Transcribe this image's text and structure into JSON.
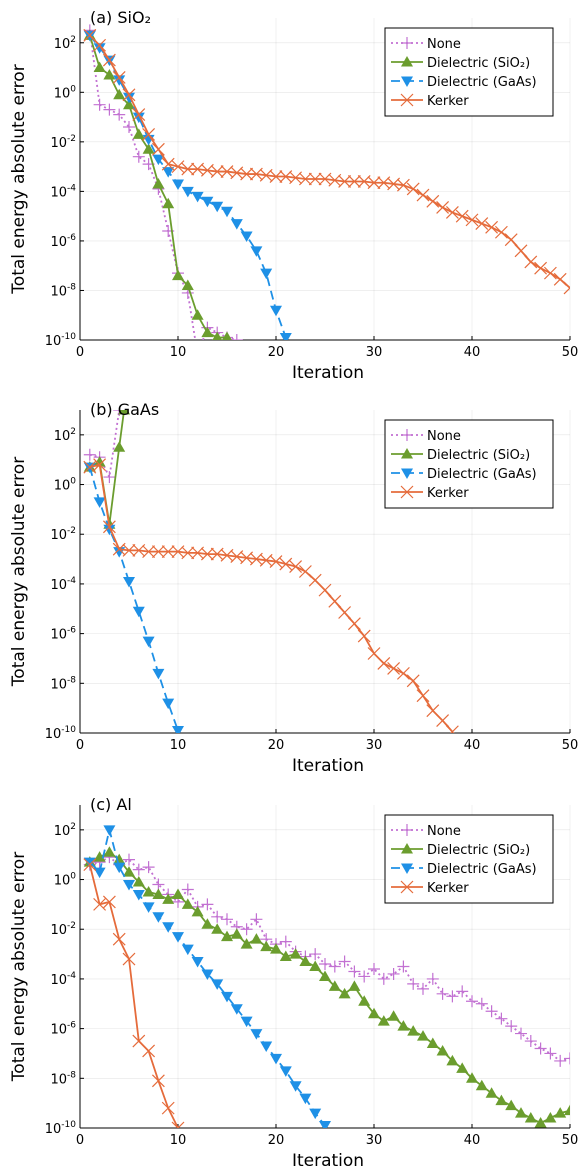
{
  "colors": {
    "None": "#c271d2",
    "Dielectric (SiO₂)": "#6b9d2e",
    "Dielectric (GaAs)": "#1e90e6",
    "Kerker": "#e56b3b"
  },
  "chart_data": [
    {
      "type": "line",
      "title": "(a) SiO₂",
      "xlabel": "Iteration",
      "ylabel": "Total energy absolute error",
      "xlim": [
        0,
        50
      ],
      "ylim_exp": [
        -10,
        3
      ],
      "yscale": "log",
      "xticks": [
        0,
        10,
        20,
        30,
        40,
        50
      ],
      "yticks_exp": [
        -10,
        -8,
        -6,
        -4,
        -2,
        0,
        2
      ],
      "grid": true,
      "legend": "top-right",
      "series": [
        {
          "name": "None",
          "marker": "plus",
          "dash": "dotted",
          "x": [
            1,
            2,
            3,
            4,
            5,
            6,
            7,
            8,
            9,
            10,
            11,
            12,
            13,
            14,
            15,
            16
          ],
          "y": [
            2.5,
            -0.5,
            -0.7,
            -0.9,
            -1.4,
            -2.6,
            -2.9,
            -3.9,
            -5.6,
            -7.3,
            -8.1,
            -10.6,
            -9.5,
            -9.7,
            -9.9,
            -10.0
          ]
        },
        {
          "name": "Dielectric (SiO₂)",
          "marker": "triangle-up",
          "dash": "solid",
          "x": [
            1,
            2,
            3,
            4,
            5,
            6,
            7,
            8,
            9,
            10,
            11,
            12,
            13,
            14,
            15
          ],
          "y": [
            2.3,
            1.0,
            0.7,
            -0.1,
            -0.5,
            -1.7,
            -2.3,
            -3.7,
            -4.5,
            -7.4,
            -7.8,
            -9.0,
            -9.7,
            -9.9,
            -9.9
          ]
        },
        {
          "name": "Dielectric (GaAs)",
          "marker": "triangle-down",
          "dash": "dashed",
          "x": [
            1,
            2,
            3,
            4,
            5,
            6,
            7,
            8,
            9,
            10,
            11,
            12,
            13,
            14,
            15,
            16,
            17,
            18,
            19,
            20,
            21
          ],
          "y": [
            2.3,
            1.8,
            1.3,
            0.5,
            -0.2,
            -1.0,
            -1.9,
            -2.7,
            -3.2,
            -3.7,
            -4.0,
            -4.2,
            -4.4,
            -4.6,
            -4.8,
            -5.3,
            -5.8,
            -6.4,
            -7.3,
            -8.8,
            -9.9
          ]
        },
        {
          "name": "Kerker",
          "marker": "x",
          "dash": "solid",
          "x": [
            1,
            2,
            3,
            4,
            5,
            6,
            7,
            8,
            9,
            10,
            11,
            12,
            13,
            14,
            15,
            16,
            17,
            18,
            19,
            20,
            21,
            22,
            23,
            24,
            25,
            26,
            27,
            28,
            29,
            30,
            31,
            32,
            33,
            34,
            35,
            36,
            37,
            38,
            39,
            40,
            41,
            42,
            43,
            44,
            45,
            46,
            47,
            48,
            49,
            50
          ],
          "y": [
            2.3,
            1.9,
            1.3,
            0.6,
            -0.1,
            -0.9,
            -1.7,
            -2.3,
            -2.9,
            -3.0,
            -3.1,
            -3.1,
            -3.15,
            -3.2,
            -3.2,
            -3.25,
            -3.3,
            -3.3,
            -3.35,
            -3.4,
            -3.4,
            -3.45,
            -3.5,
            -3.5,
            -3.5,
            -3.55,
            -3.6,
            -3.6,
            -3.6,
            -3.65,
            -3.65,
            -3.7,
            -3.75,
            -3.9,
            -4.15,
            -4.4,
            -4.65,
            -4.85,
            -5.0,
            -5.15,
            -5.3,
            -5.45,
            -5.65,
            -5.95,
            -6.4,
            -6.85,
            -7.1,
            -7.3,
            -7.55,
            -7.9
          ]
        }
      ]
    },
    {
      "type": "line",
      "title": "(b) GaAs",
      "xlabel": "Iteration",
      "ylabel": "Total energy absolute error",
      "xlim": [
        0,
        50
      ],
      "ylim_exp": [
        -10,
        3
      ],
      "yscale": "log",
      "xticks": [
        0,
        10,
        20,
        30,
        40,
        50
      ],
      "yticks_exp": [
        -10,
        -8,
        -6,
        -4,
        -2,
        0,
        2
      ],
      "grid": true,
      "legend": "top-right",
      "series": [
        {
          "name": "None",
          "marker": "plus",
          "dash": "dotted",
          "x": [
            1,
            2,
            3,
            4
          ],
          "y": [
            1.2,
            1.1,
            0.3,
            3.0
          ]
        },
        {
          "name": "Dielectric (SiO₂)",
          "marker": "triangle-up",
          "dash": "solid",
          "x": [
            1,
            2,
            3,
            4,
            4.5
          ],
          "y": [
            0.7,
            0.9,
            -1.6,
            1.5,
            3.0
          ]
        },
        {
          "name": "Dielectric (GaAs)",
          "marker": "triangle-down",
          "dash": "dashed",
          "x": [
            1,
            2,
            3,
            4,
            5,
            6,
            7,
            8,
            9,
            10
          ],
          "y": [
            0.7,
            -0.7,
            -1.8,
            -2.7,
            -3.9,
            -5.1,
            -6.3,
            -7.6,
            -8.8,
            -9.9
          ]
        },
        {
          "name": "Kerker",
          "marker": "x",
          "dash": "solid",
          "x": [
            1,
            2,
            3,
            4,
            5,
            6,
            7,
            8,
            9,
            10,
            11,
            12,
            13,
            14,
            15,
            16,
            17,
            18,
            19,
            20,
            21,
            22,
            23,
            24,
            25,
            26,
            27,
            28,
            29,
            30,
            31,
            32,
            33,
            34,
            35,
            36,
            37,
            38
          ],
          "y": [
            0.7,
            0.8,
            -1.7,
            -2.6,
            -2.65,
            -2.65,
            -2.7,
            -2.7,
            -2.7,
            -2.7,
            -2.75,
            -2.75,
            -2.8,
            -2.8,
            -2.85,
            -2.9,
            -2.95,
            -3.0,
            -3.05,
            -3.1,
            -3.2,
            -3.3,
            -3.5,
            -3.85,
            -4.25,
            -4.7,
            -5.15,
            -5.6,
            -6.1,
            -6.8,
            -7.2,
            -7.4,
            -7.6,
            -7.9,
            -8.5,
            -9.1,
            -9.5,
            -9.95
          ]
        }
      ]
    },
    {
      "type": "line",
      "title": "(c) Al",
      "xlabel": "Iteration",
      "ylabel": "Total energy absolute error",
      "xlim": [
        0,
        50
      ],
      "ylim_exp": [
        -10,
        3
      ],
      "yscale": "log",
      "xticks": [
        0,
        10,
        20,
        30,
        40,
        50
      ],
      "yticks_exp": [
        -10,
        -8,
        -6,
        -4,
        -2,
        0,
        2
      ],
      "grid": true,
      "legend": "top-right",
      "series": [
        {
          "name": "None",
          "marker": "plus",
          "dash": "dotted",
          "x": [
            1,
            2,
            3,
            4,
            5,
            6,
            7,
            8,
            9,
            10,
            11,
            12,
            13,
            14,
            15,
            16,
            17,
            18,
            19,
            20,
            21,
            22,
            23,
            24,
            25,
            26,
            27,
            28,
            29,
            30,
            31,
            32,
            33,
            34,
            35,
            36,
            37,
            38,
            39,
            40,
            41,
            42,
            43,
            44,
            45,
            46,
            47,
            48,
            49,
            50
          ],
          "y": [
            0.6,
            0.7,
            0.9,
            0.6,
            0.8,
            0.4,
            0.5,
            -0.2,
            -0.6,
            -0.9,
            -0.4,
            -1.1,
            -1.0,
            -1.5,
            -1.6,
            -1.9,
            -2.0,
            -1.6,
            -2.4,
            -2.6,
            -2.5,
            -2.9,
            -3.1,
            -3.0,
            -3.4,
            -3.5,
            -3.3,
            -3.7,
            -3.9,
            -3.6,
            -4.0,
            -3.8,
            -3.5,
            -4.2,
            -4.4,
            -4.0,
            -4.6,
            -4.7,
            -4.5,
            -4.9,
            -5.0,
            -5.3,
            -5.6,
            -5.9,
            -6.2,
            -6.5,
            -6.8,
            -7.0,
            -7.3,
            -7.2
          ]
        },
        {
          "name": "Dielectric (SiO₂)",
          "marker": "triangle-up",
          "dash": "solid",
          "x": [
            1,
            2,
            3,
            4,
            5,
            6,
            7,
            8,
            9,
            10,
            11,
            12,
            13,
            14,
            15,
            16,
            17,
            18,
            19,
            20,
            21,
            22,
            23,
            24,
            25,
            26,
            27,
            28,
            29,
            30,
            31,
            32,
            33,
            34,
            35,
            36,
            37,
            38,
            39,
            40,
            41,
            42,
            43,
            44,
            45,
            46,
            47,
            48,
            49,
            50
          ],
          "y": [
            0.7,
            0.9,
            1.1,
            0.8,
            0.3,
            -0.1,
            -0.5,
            -0.6,
            -0.8,
            -0.6,
            -1.0,
            -1.3,
            -1.8,
            -2.0,
            -2.3,
            -2.2,
            -2.6,
            -2.4,
            -2.7,
            -2.8,
            -3.1,
            -3.0,
            -3.3,
            -3.5,
            -3.9,
            -4.3,
            -4.6,
            -4.3,
            -4.9,
            -5.4,
            -5.7,
            -5.5,
            -5.9,
            -6.1,
            -6.3,
            -6.6,
            -6.9,
            -7.3,
            -7.6,
            -8.0,
            -8.3,
            -8.6,
            -8.9,
            -9.1,
            -9.4,
            -9.6,
            -9.8,
            -9.6,
            -9.4,
            -9.3
          ]
        },
        {
          "name": "Dielectric (GaAs)",
          "marker": "triangle-down",
          "dash": "dashed",
          "x": [
            1,
            2,
            3,
            4,
            5,
            6,
            7,
            8,
            9,
            10,
            11,
            12,
            13,
            14,
            15,
            16,
            17,
            18,
            19,
            20,
            21,
            22,
            23,
            24,
            25
          ],
          "y": [
            0.7,
            0.3,
            2.0,
            0.5,
            -0.2,
            -0.6,
            -1.1,
            -1.5,
            -1.9,
            -2.3,
            -2.8,
            -3.3,
            -3.8,
            -4.2,
            -4.7,
            -5.2,
            -5.7,
            -6.2,
            -6.7,
            -7.2,
            -7.7,
            -8.3,
            -8.8,
            -9.4,
            -9.9
          ]
        },
        {
          "name": "Kerker",
          "marker": "x",
          "dash": "solid",
          "x": [
            1,
            2,
            3,
            4,
            5,
            6,
            7,
            8,
            9,
            10
          ],
          "y": [
            0.6,
            -1.0,
            -0.9,
            -2.4,
            -3.2,
            -6.5,
            -6.9,
            -8.1,
            -9.2,
            -10.0
          ]
        }
      ]
    }
  ]
}
